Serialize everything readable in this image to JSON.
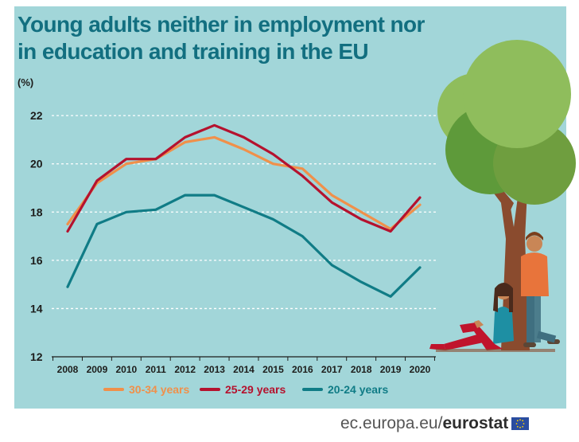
{
  "chart_data": {
    "type": "line",
    "title": "Young adults neither in employment nor in education and training in the EU",
    "unit": "(%)",
    "x": [
      "2008",
      "2009",
      "2010",
      "2011",
      "2012",
      "2013",
      "2014",
      "2015",
      "2016",
      "2017",
      "2018",
      "2019",
      "2020"
    ],
    "yticks": [
      12,
      14,
      16,
      18,
      20,
      22
    ],
    "ylim": [
      12,
      22.5
    ],
    "grid": "horizontal dashed",
    "legend_position": "bottom",
    "series": [
      {
        "name": "30-34 years",
        "color": "#f0904a",
        "values": [
          17.5,
          19.2,
          20.0,
          20.2,
          20.9,
          21.1,
          20.6,
          20.0,
          19.8,
          18.7,
          18.0,
          17.3,
          18.3
        ]
      },
      {
        "name": "25-29 years",
        "color": "#b5122e",
        "values": [
          17.2,
          19.3,
          20.2,
          20.2,
          21.1,
          21.6,
          21.1,
          20.4,
          19.5,
          18.4,
          17.7,
          17.2,
          18.6
        ]
      },
      {
        "name": "20-24 years",
        "color": "#107c86",
        "values": [
          14.9,
          17.5,
          18.0,
          18.1,
          18.7,
          18.7,
          18.2,
          17.7,
          17.0,
          15.8,
          15.1,
          14.5,
          15.7
        ]
      }
    ]
  },
  "footer": {
    "prefix": "ec.europa.eu/",
    "brand": "eurostat"
  },
  "colors": {
    "background": "#a2d6d9",
    "title": "#126f80"
  }
}
